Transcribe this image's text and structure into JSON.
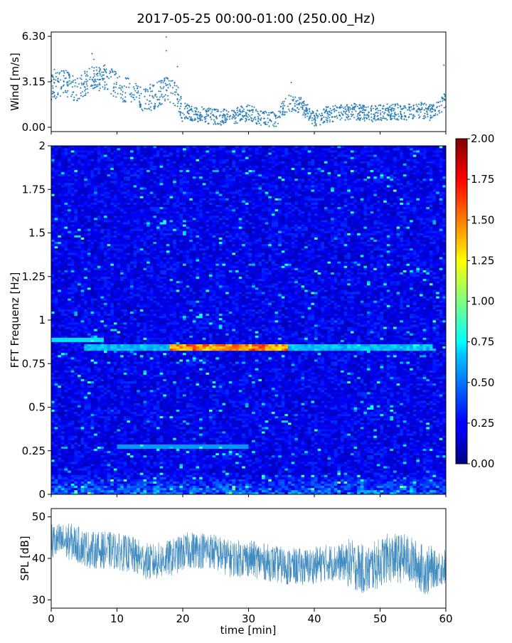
{
  "chart_data": [
    {
      "type": "scatter",
      "title": "2017-05-25 00:00-01:00 (250.00_Hz)",
      "ylabel": "Wind [m/s]",
      "xlim": [
        0,
        60
      ],
      "ylim": [
        -0.3,
        6.6
      ],
      "yticks": [
        "0.00",
        "3.15",
        "6.30"
      ],
      "ytick_values": [
        0.0,
        3.15,
        6.3
      ],
      "series": [
        {
          "values_x": [
            0,
            2,
            4,
            6,
            8,
            10,
            12,
            14,
            16,
            17.5,
            19,
            20,
            22,
            24,
            26,
            28,
            30,
            32,
            34,
            36,
            38,
            40,
            42,
            44,
            46,
            48,
            50,
            52,
            54,
            56,
            58,
            60
          ],
          "values_y": [
            2.8,
            3.1,
            2.6,
            3.3,
            3.5,
            2.9,
            2.4,
            1.9,
            2.2,
            2.6,
            2.2,
            1.2,
            0.9,
            0.8,
            0.7,
            0.8,
            1.0,
            0.6,
            0.5,
            1.7,
            1.5,
            0.6,
            0.9,
            1.0,
            1.1,
            0.9,
            1.0,
            1.1,
            1.0,
            1.2,
            1.0,
            1.9
          ]
        }
      ],
      "color": "#1f77b4"
    },
    {
      "type": "heatmap",
      "ylabel": "FFT Frequenz [Hz]",
      "xlim": [
        0,
        60
      ],
      "ylim": [
        0,
        2
      ],
      "yticks": [
        "0",
        "0.25",
        "0.5",
        "0.75",
        "1",
        "1.25",
        "1.5",
        "1.75",
        "2"
      ],
      "ytick_values": [
        0,
        0.25,
        0.5,
        0.75,
        1,
        1.25,
        1.5,
        1.75,
        2
      ],
      "colorbar": {
        "range": [
          0,
          2
        ],
        "ticks": [
          "0.00",
          "0.25",
          "0.50",
          "0.75",
          "1.00",
          "1.25",
          "1.50",
          "1.75",
          "2.00"
        ],
        "colormap": "jet"
      },
      "peak_line": {
        "frequency_hz": 0.84,
        "x_start": 5,
        "x_end": 58,
        "max_value": 1.7
      }
    },
    {
      "type": "line",
      "xlabel": "time [min]",
      "ylabel": "SPL [dB]",
      "xlim": [
        0,
        60
      ],
      "ylim": [
        28,
        52
      ],
      "yticks": [
        "30",
        "40",
        "50"
      ],
      "ytick_values": [
        30,
        40,
        50
      ],
      "xticks": [
        "0",
        "10",
        "20",
        "30",
        "40",
        "50",
        "60"
      ],
      "xtick_values": [
        0,
        10,
        20,
        30,
        40,
        50,
        60
      ],
      "series": [
        {
          "values_x": [
            0,
            3,
            6,
            9,
            12,
            15,
            18,
            21,
            24,
            27,
            30,
            33,
            36,
            39,
            42,
            45,
            48,
            51,
            54,
            57,
            60
          ],
          "values_y": [
            44,
            44,
            42,
            42,
            41,
            39,
            40,
            42,
            42,
            40,
            40,
            39,
            38,
            38,
            39,
            39,
            37,
            40,
            40,
            37,
            38
          ]
        }
      ],
      "color": "#1f77b4"
    }
  ]
}
